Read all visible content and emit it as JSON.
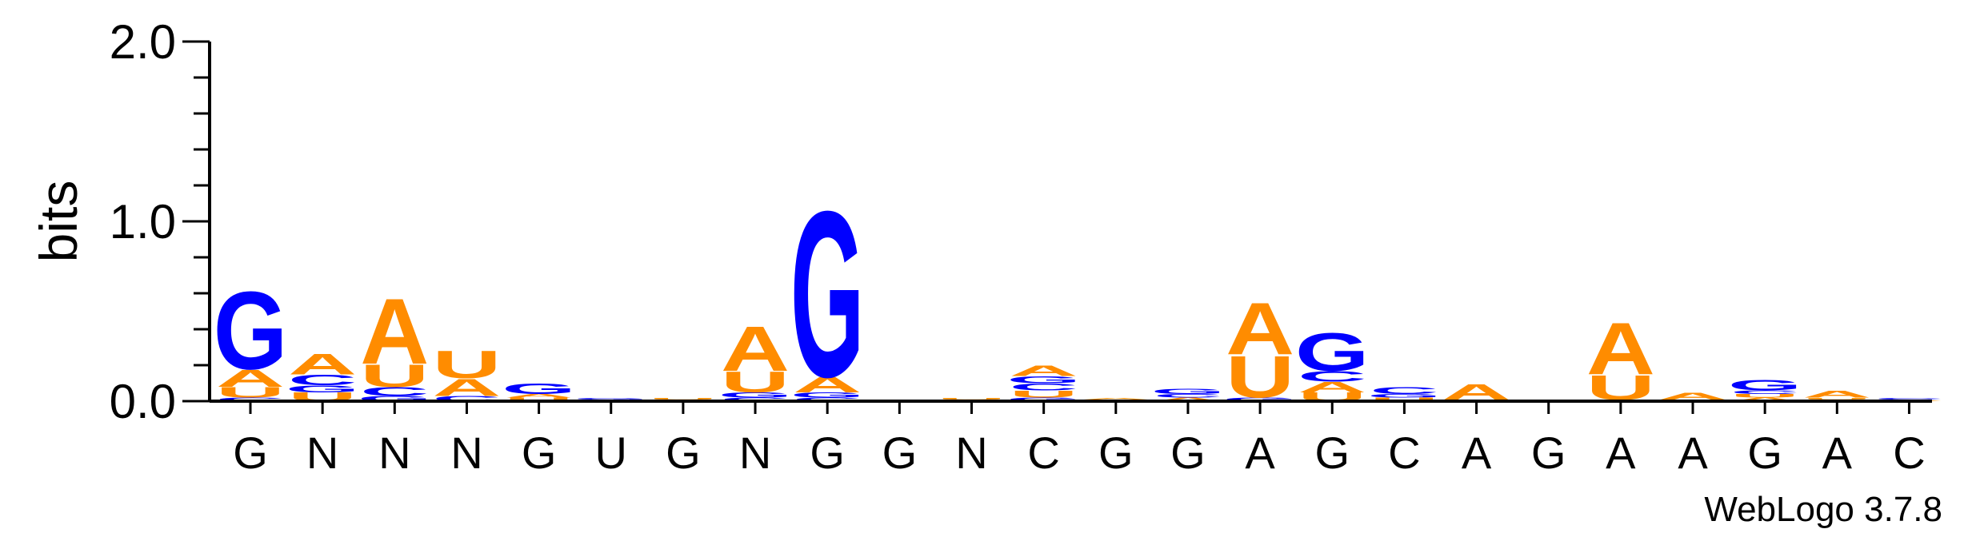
{
  "chart_data": {
    "type": "sequence-logo",
    "ylabel": "bits",
    "ylim": [
      0,
      2
    ],
    "yticks": [
      "0.0",
      "1.0",
      "2.0"
    ],
    "xlabels": [
      "G",
      "N",
      "N",
      "N",
      "G",
      "U",
      "G",
      "N",
      "G",
      "G",
      "N",
      "C",
      "G",
      "G",
      "A",
      "G",
      "C",
      "A",
      "G",
      "A",
      "A",
      "G",
      "A",
      "C"
    ],
    "colors": {
      "A": "#ff8c00",
      "U": "#ff8c00",
      "G": "#0000ff",
      "C": "#0000ff"
    },
    "columns": [
      [
        [
          "C",
          0.02
        ],
        [
          "U",
          0.06
        ],
        [
          "A",
          0.1
        ],
        [
          "G",
          0.45
        ]
      ],
      [
        [
          "U",
          0.05
        ],
        [
          "G",
          0.04
        ],
        [
          "C",
          0.06
        ],
        [
          "A",
          0.12
        ]
      ],
      [
        [
          "G",
          0.03
        ],
        [
          "C",
          0.05
        ],
        [
          "U",
          0.13
        ],
        [
          "A",
          0.38
        ]
      ],
      [
        [
          "C",
          0.03
        ],
        [
          "A",
          0.1
        ],
        [
          "U",
          0.16
        ]
      ],
      [
        [
          "U",
          0.02
        ],
        [
          "A",
          0.02
        ],
        [
          "G",
          0.06
        ]
      ],
      [
        [
          "A",
          0.01
        ],
        [
          "G",
          0.01
        ]
      ],
      [
        [
          "A",
          0.01
        ],
        [
          "U",
          0.01
        ]
      ],
      [
        [
          "C",
          0.02
        ],
        [
          "G",
          0.03
        ],
        [
          "U",
          0.12
        ],
        [
          "A",
          0.26
        ]
      ],
      [
        [
          "C",
          0.02
        ],
        [
          "G",
          0.03
        ],
        [
          "A",
          0.09
        ],
        [
          "G",
          0.96
        ]
      ],
      [
        [
          "A",
          0.01
        ]
      ],
      [
        [
          "A",
          0.01
        ],
        [
          "U",
          0.01
        ]
      ],
      [
        [
          "G",
          0.02
        ],
        [
          "U",
          0.04
        ],
        [
          "C",
          0.04
        ],
        [
          "G",
          0.04
        ],
        [
          "A",
          0.06
        ]
      ],
      [
        [
          "G",
          0.01
        ],
        [
          "A",
          0.01
        ]
      ],
      [
        [
          "A",
          0.02
        ],
        [
          "C",
          0.02
        ],
        [
          "G",
          0.03
        ]
      ],
      [
        [
          "G",
          0.02
        ],
        [
          "U",
          0.24
        ],
        [
          "A",
          0.3
        ]
      ],
      [
        [
          "U",
          0.05
        ],
        [
          "A",
          0.06
        ],
        [
          "C",
          0.06
        ],
        [
          "G",
          0.22
        ]
      ],
      [
        [
          "U",
          0.02
        ],
        [
          "G",
          0.02
        ],
        [
          "C",
          0.04
        ]
      ],
      [
        [
          "G",
          0.01
        ],
        [
          "A",
          0.09
        ]
      ],
      [
        [
          "A",
          0.01
        ]
      ],
      [
        [
          "G",
          0.01
        ],
        [
          "U",
          0.14
        ],
        [
          "A",
          0.3
        ]
      ],
      [
        [
          "U",
          0.01
        ],
        [
          "A",
          0.04
        ]
      ],
      [
        [
          "A",
          0.02
        ],
        [
          "U",
          0.02
        ],
        [
          "C",
          0.02
        ],
        [
          "G",
          0.06
        ]
      ],
      [
        [
          "G",
          0.01
        ],
        [
          "U",
          0.01
        ],
        [
          "A",
          0.04
        ]
      ],
      [
        [
          "A",
          0.01
        ],
        [
          "C",
          0.01
        ]
      ]
    ]
  },
  "footer": {
    "credit": "WebLogo 3.7.8"
  }
}
